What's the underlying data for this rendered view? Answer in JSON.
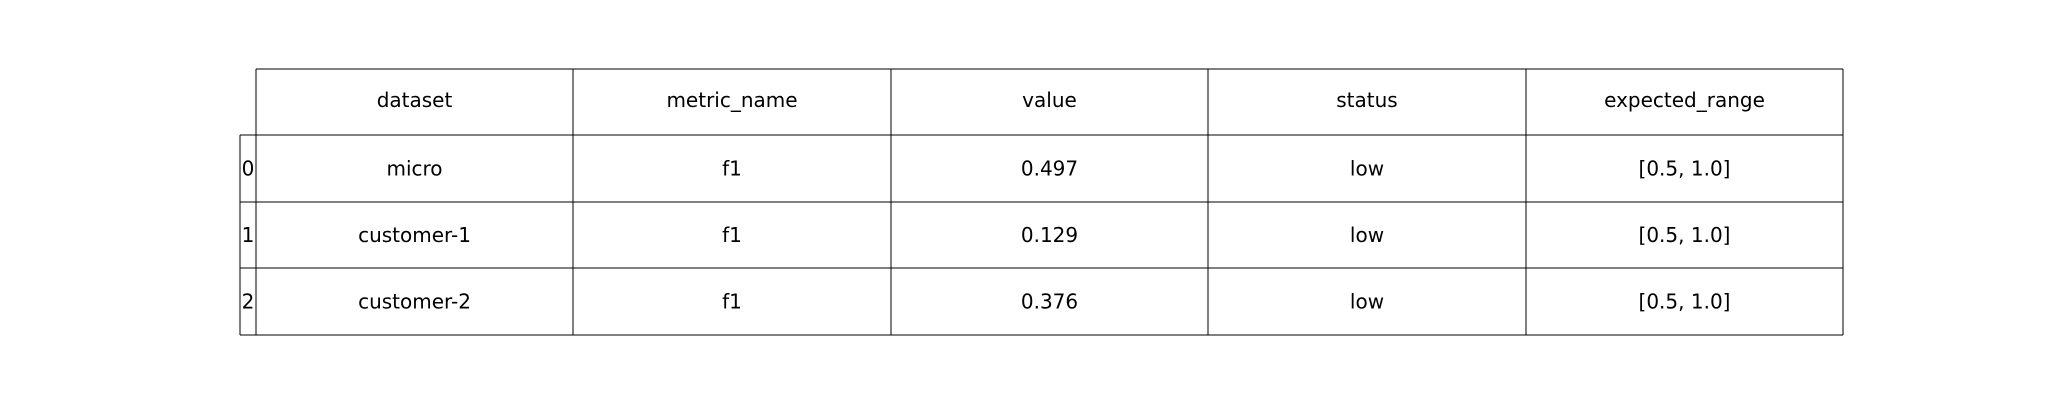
{
  "chart_data": {
    "type": "table",
    "columns": [
      "dataset",
      "metric_name",
      "value",
      "status",
      "expected_range"
    ],
    "row_labels": [
      "0",
      "1",
      "2"
    ],
    "rows": [
      [
        "micro",
        "f1",
        "0.497",
        "low",
        "[0.5, 1.0]"
      ],
      [
        "customer-1",
        "f1",
        "0.129",
        "low",
        "[0.5, 1.0]"
      ],
      [
        "customer-2",
        "f1",
        "0.376",
        "low",
        "[0.5, 1.0]"
      ]
    ]
  }
}
